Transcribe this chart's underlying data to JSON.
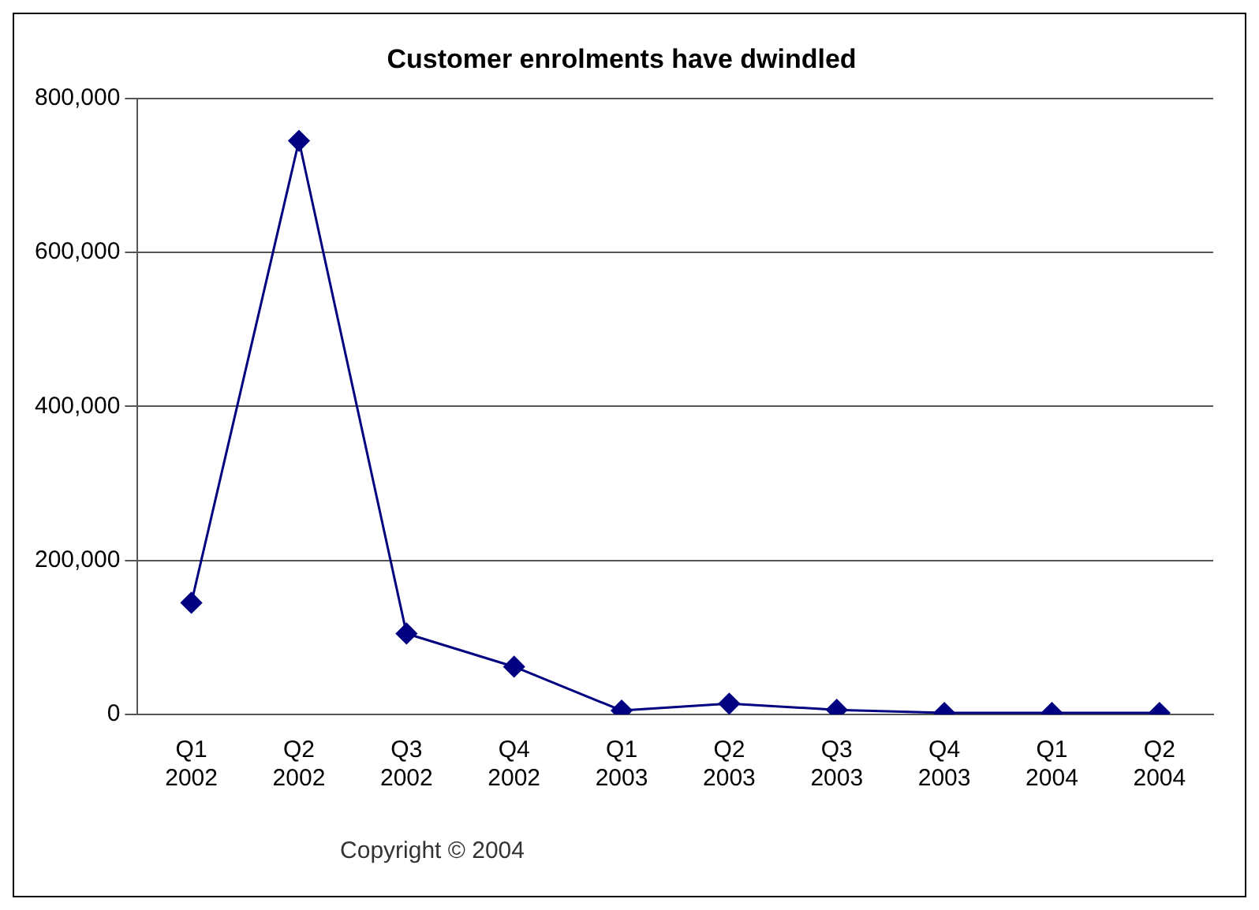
{
  "chart_data": {
    "type": "line",
    "title": "Customer enrolments have dwindled",
    "categories": [
      "Q1 2002",
      "Q2 2002",
      "Q3 2002",
      "Q4 2002",
      "Q1 2003",
      "Q2 2003",
      "Q3 2003",
      "Q4 2003",
      "Q1 2004",
      "Q2 2004"
    ],
    "series": [
      {
        "color": "#000080",
        "values": [
          145000,
          745000,
          105000,
          62000,
          5000,
          14000,
          6000,
          2000,
          2000,
          2000
        ]
      }
    ],
    "ylim": [
      0,
      800000
    ],
    "yticks": [
      {
        "value": 0,
        "label": "0"
      },
      {
        "value": 200000,
        "label": "200,000"
      },
      {
        "value": 400000,
        "label": "400,000"
      },
      {
        "value": 600000,
        "label": "600,000"
      },
      {
        "value": 800000,
        "label": "800,000"
      }
    ],
    "grid": "y",
    "legend": false,
    "marker": "diamond",
    "line_style": "solid",
    "annotations": [
      "Copyright © 2004"
    ]
  }
}
